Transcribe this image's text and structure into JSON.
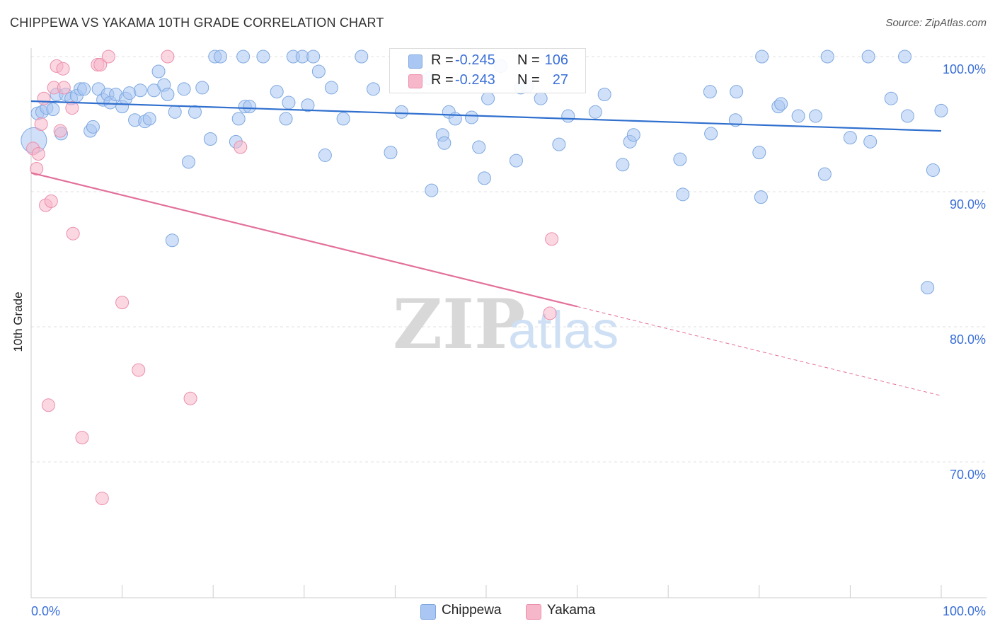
{
  "header": {
    "title": "CHIPPEWA VS YAKAMA 10TH GRADE CORRELATION CHART",
    "source": "Source: ZipAtlas.com"
  },
  "stats_legend": {
    "rows": [
      {
        "r_label": "R =",
        "r_value": "-0.245",
        "n_label": "N =",
        "n_value": "106",
        "color": "#a9c7f2"
      },
      {
        "r_label": "R =",
        "r_value": "-0.243",
        "n_label": "N =",
        "n_value": "27",
        "color": "#f7b7ca"
      }
    ]
  },
  "bottom_legend": {
    "items": [
      {
        "label": "Chippewa",
        "color": "#a9c7f2"
      },
      {
        "label": "Yakama",
        "color": "#f7b7ca"
      }
    ]
  },
  "watermark": {
    "zip": "ZIP",
    "atlas": "atlas"
  },
  "chart_data": {
    "type": "scatter",
    "title": "CHIPPEWA VS YAKAMA 10TH GRADE CORRELATION CHART",
    "xlabel": "",
    "ylabel": "10th Grade",
    "xlim": [
      0,
      100
    ],
    "ylim": [
      60.5,
      101.5
    ],
    "x_tick_labels": [
      "0.0%",
      "100.0%"
    ],
    "y_ticks": [
      100,
      90,
      80,
      70
    ],
    "y_tick_labels": [
      "100.0%",
      "90.0%",
      "80.0%",
      "70.0%"
    ],
    "grid": true,
    "legend_position": "top-center",
    "colors": {
      "chippewa_fill": "#a9c7f2",
      "chippewa_stroke": "#7ea8e0",
      "chippewa_line": "#2f6fce",
      "yakama_fill": "#f7b7ca",
      "yakama_stroke": "#eb8fac",
      "yakama_line": "#e3709a",
      "tick_label": "#3a6fd8"
    },
    "series": [
      {
        "name": "Chippewa",
        "trend": {
          "x0": 0,
          "y0": 96.7,
          "x1": 100,
          "y1": 94.5
        },
        "points": [
          [
            0.3,
            93.8
          ],
          [
            0.7,
            95.8
          ],
          [
            1.2,
            95.9
          ],
          [
            1.7,
            96.2
          ],
          [
            2.4,
            96.1
          ],
          [
            2.8,
            97.2
          ],
          [
            3.3,
            94.3
          ],
          [
            3.8,
            97.2
          ],
          [
            4.4,
            96.9
          ],
          [
            5.0,
            97.1
          ],
          [
            5.4,
            97.6
          ],
          [
            5.8,
            97.6
          ],
          [
            6.5,
            94.5
          ],
          [
            6.8,
            94.8
          ],
          [
            7.4,
            97.6
          ],
          [
            7.9,
            96.8
          ],
          [
            8.4,
            97.2
          ],
          [
            8.7,
            96.6
          ],
          [
            9.3,
            97.2
          ],
          [
            10.0,
            96.3
          ],
          [
            10.4,
            96.9
          ],
          [
            10.8,
            97.3
          ],
          [
            11.4,
            95.3
          ],
          [
            12.0,
            97.5
          ],
          [
            12.5,
            95.2
          ],
          [
            13.0,
            95.4
          ],
          [
            13.5,
            97.5
          ],
          [
            14.0,
            98.9
          ],
          [
            14.6,
            97.9
          ],
          [
            15.0,
            97.2
          ],
          [
            15.5,
            86.4
          ],
          [
            15.8,
            95.9
          ],
          [
            16.8,
            97.6
          ],
          [
            17.3,
            92.2
          ],
          [
            18.0,
            95.9
          ],
          [
            18.8,
            97.7
          ],
          [
            19.7,
            93.9
          ],
          [
            20.2,
            100.0
          ],
          [
            20.8,
            100.0
          ],
          [
            22.5,
            93.7
          ],
          [
            22.8,
            95.4
          ],
          [
            23.3,
            100.0
          ],
          [
            23.5,
            96.3
          ],
          [
            24.0,
            96.3
          ],
          [
            25.5,
            100.0
          ],
          [
            27.0,
            97.4
          ],
          [
            28.0,
            95.4
          ],
          [
            28.3,
            96.6
          ],
          [
            28.8,
            100.0
          ],
          [
            29.8,
            100.0
          ],
          [
            30.4,
            96.4
          ],
          [
            31.0,
            100.0
          ],
          [
            31.6,
            98.9
          ],
          [
            32.3,
            92.7
          ],
          [
            33.0,
            97.7
          ],
          [
            34.3,
            95.4
          ],
          [
            36.3,
            100.0
          ],
          [
            37.6,
            97.6
          ],
          [
            39.5,
            92.9
          ],
          [
            40.7,
            95.9
          ],
          [
            43.7,
            98.4
          ],
          [
            44.0,
            90.1
          ],
          [
            45.2,
            94.2
          ],
          [
            45.4,
            93.6
          ],
          [
            45.9,
            95.9
          ],
          [
            46.6,
            95.4
          ],
          [
            48.4,
            95.5
          ],
          [
            49.2,
            93.3
          ],
          [
            49.8,
            91.0
          ],
          [
            50.2,
            96.9
          ],
          [
            51.6,
            99.3
          ],
          [
            53.3,
            92.3
          ],
          [
            53.8,
            97.7
          ],
          [
            54.5,
            97.8
          ],
          [
            56.0,
            96.9
          ],
          [
            58.0,
            93.5
          ],
          [
            59.0,
            95.6
          ],
          [
            62.0,
            95.9
          ],
          [
            63.0,
            97.2
          ],
          [
            65.0,
            92.0
          ],
          [
            65.8,
            93.7
          ],
          [
            66.2,
            94.2
          ],
          [
            71.3,
            92.4
          ],
          [
            71.6,
            89.8
          ],
          [
            74.6,
            97.4
          ],
          [
            74.7,
            94.3
          ],
          [
            77.4,
            95.3
          ],
          [
            77.5,
            97.4
          ],
          [
            80.0,
            92.9
          ],
          [
            80.2,
            89.6
          ],
          [
            80.3,
            100.0
          ],
          [
            82.1,
            96.3
          ],
          [
            82.4,
            96.5
          ],
          [
            84.3,
            95.6
          ],
          [
            86.2,
            95.6
          ],
          [
            87.2,
            91.3
          ],
          [
            87.5,
            100.0
          ],
          [
            90.0,
            94.0
          ],
          [
            92.0,
            100.0
          ],
          [
            92.2,
            93.7
          ],
          [
            94.5,
            96.9
          ],
          [
            96.0,
            100.0
          ],
          [
            96.3,
            95.6
          ],
          [
            98.5,
            82.9
          ],
          [
            99.1,
            91.6
          ],
          [
            100.0,
            96.0
          ]
        ]
      },
      {
        "name": "Yakama",
        "trend": {
          "x0": 0,
          "y0": 91.4,
          "x1": 60,
          "y1": 81.5
        },
        "trend_dashed": {
          "x0": 60,
          "y0": 81.5,
          "x1": 100,
          "y1": 74.9
        },
        "points": [
          [
            0.2,
            93.2
          ],
          [
            0.6,
            91.7
          ],
          [
            0.8,
            92.8
          ],
          [
            1.1,
            95.0
          ],
          [
            1.4,
            96.9
          ],
          [
            1.6,
            89.0
          ],
          [
            1.9,
            74.2
          ],
          [
            2.2,
            89.3
          ],
          [
            2.5,
            97.7
          ],
          [
            2.8,
            99.3
          ],
          [
            3.2,
            94.5
          ],
          [
            3.5,
            99.1
          ],
          [
            3.6,
            97.7
          ],
          [
            4.5,
            96.2
          ],
          [
            4.6,
            86.9
          ],
          [
            5.6,
            71.8
          ],
          [
            7.3,
            99.4
          ],
          [
            7.6,
            99.4
          ],
          [
            7.8,
            67.3
          ],
          [
            8.5,
            100.0
          ],
          [
            10.0,
            81.8
          ],
          [
            11.8,
            76.8
          ],
          [
            15.0,
            100.0
          ],
          [
            17.5,
            74.7
          ],
          [
            23.0,
            93.3
          ],
          [
            57.0,
            81.0
          ],
          [
            57.2,
            86.5
          ]
        ]
      }
    ]
  }
}
